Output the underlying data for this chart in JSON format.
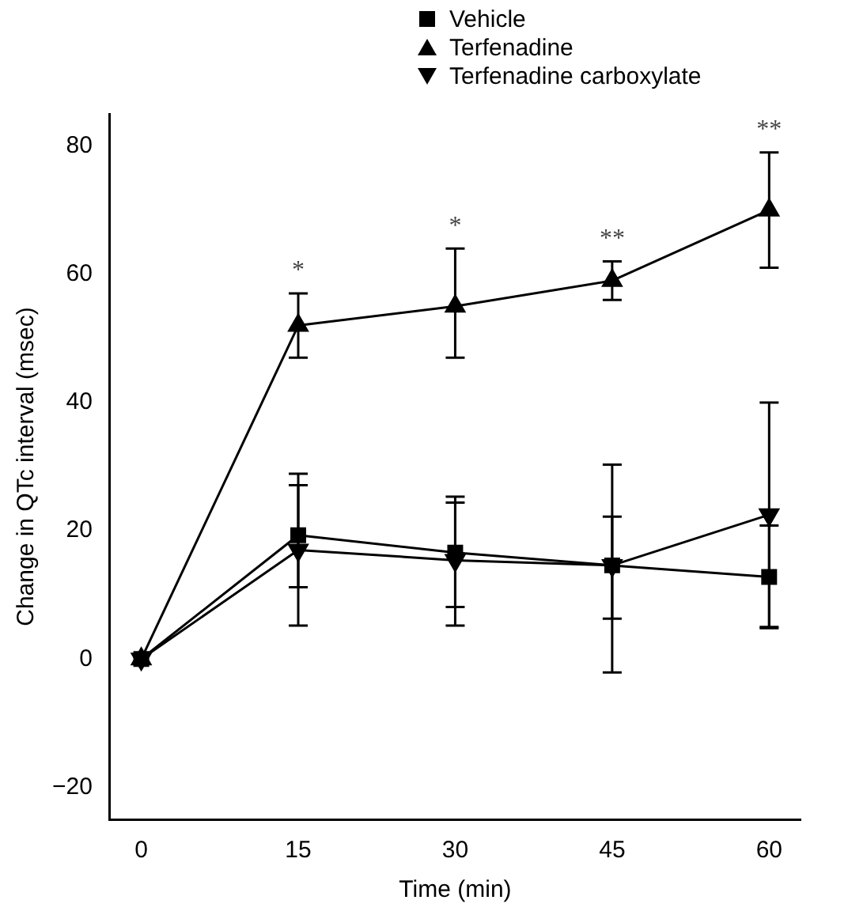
{
  "chart_data": {
    "type": "line",
    "xlabel": "Time (min)",
    "ylabel": "Change in QTc interval (msec)",
    "x": [
      0,
      15,
      30,
      45,
      60
    ],
    "xlim": [
      -3,
      63
    ],
    "xticks": [
      0,
      15,
      30,
      45,
      60
    ],
    "ylim": [
      -25,
      85
    ],
    "yticks": [
      -20,
      0,
      20,
      40,
      60,
      80
    ],
    "grid": false,
    "legend": "top",
    "series": [
      {
        "name": "Vehicle",
        "color": "#000000",
        "marker": "square",
        "values": [
          0,
          19.3,
          16.6,
          14.6,
          12.8
        ],
        "errors": [
          null,
          [
            11.2,
            27.1
          ],
          [
            8.1,
            25.3
          ],
          [
            6.3,
            22.2
          ],
          [
            4.8,
            20.8
          ]
        ]
      },
      {
        "name": "Terfenadine",
        "color": "#000000",
        "marker": "triangle",
        "values": [
          0,
          52,
          55,
          59,
          70
        ],
        "errors": [
          null,
          [
            47,
            57
          ],
          [
            47,
            64
          ],
          [
            56,
            62
          ],
          [
            61,
            79
          ]
        ]
      },
      {
        "name": "Terfenadine carboxylate",
        "color": "#000000",
        "marker": "triangle-down",
        "values": [
          0,
          17,
          15.4,
          14.6,
          22.5
        ],
        "errors": [
          null,
          [
            5.2,
            28.9
          ],
          [
            5.2,
            24.4
          ],
          [
            -2.1,
            30.3
          ],
          [
            5,
            40
          ]
        ]
      }
    ],
    "annotations": [
      {
        "text": "*",
        "x": 15,
        "y": 57
      },
      {
        "text": "*",
        "x": 30,
        "y": 64
      },
      {
        "text": "**",
        "x": 45,
        "y": 62
      },
      {
        "text": "**",
        "x": 60,
        "y": 79
      }
    ]
  }
}
